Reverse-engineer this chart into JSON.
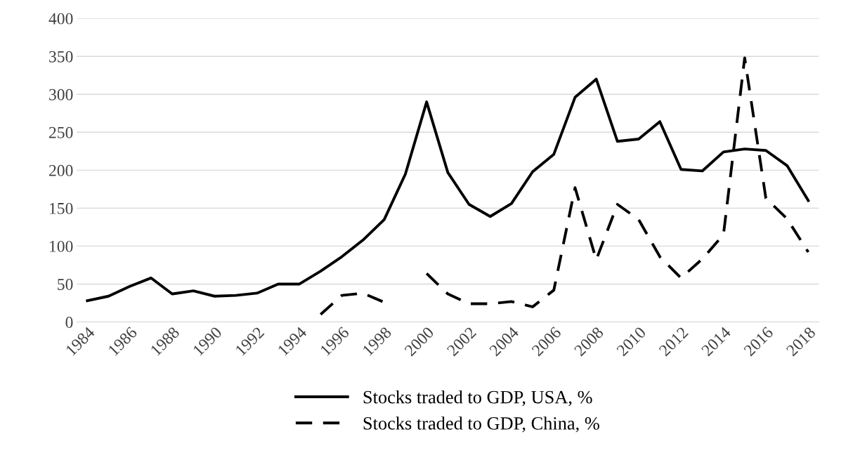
{
  "chart_data": {
    "type": "line",
    "categories": [
      "1984",
      null,
      "1986",
      null,
      "1988",
      null,
      "1990",
      null,
      "1992",
      null,
      "1994",
      null,
      "1996",
      null,
      "1998",
      null,
      "2000",
      null,
      "2002",
      null,
      "2004",
      null,
      "2006",
      null,
      "2008",
      null,
      "2010",
      null,
      "2012",
      null,
      "2014",
      null,
      "2016",
      null,
      "2018"
    ],
    "series": [
      {
        "name": "Stocks traded to GDP, USA, %",
        "color": "#000000",
        "line_style": "solid",
        "values": [
          28,
          34,
          47,
          58,
          37,
          41,
          34,
          35,
          38,
          50,
          50,
          67,
          86,
          108,
          135,
          195,
          290,
          197,
          155,
          139,
          156,
          198,
          221,
          296,
          320,
          238,
          241,
          264,
          201,
          199,
          224,
          228,
          226,
          206,
          160
        ]
      },
      {
        "name": "Stocks traded to GDP, China, %",
        "color": "#000000",
        "line_style": "dashed",
        "values": [
          null,
          null,
          null,
          null,
          null,
          null,
          null,
          null,
          null,
          null,
          null,
          10,
          35,
          38,
          26,
          null,
          64,
          37,
          24,
          24,
          27,
          20,
          42,
          177,
          82,
          155,
          135,
          86,
          58,
          83,
          115,
          348,
          163,
          136,
          92
        ]
      }
    ],
    "ylim": [
      0,
      400
    ],
    "yticks": [
      0,
      50,
      100,
      150,
      200,
      250,
      300,
      350,
      400
    ],
    "grid": "y",
    "legend": "bottom",
    "marker": "none"
  }
}
